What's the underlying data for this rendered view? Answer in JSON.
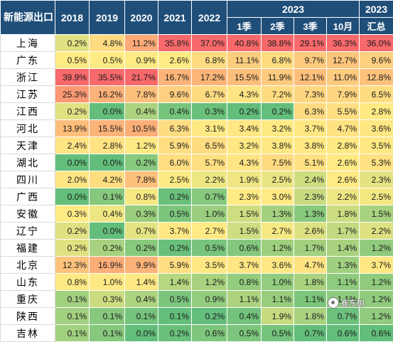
{
  "chart_data": {
    "type": "table",
    "corner_label": "新能源出口",
    "header_top": [
      "2018",
      "2019",
      "2020",
      "2021",
      "2022",
      "2023",
      "2023"
    ],
    "header_sub": [
      "1季",
      "2季",
      "3季",
      "10月",
      "汇总"
    ],
    "columns": [
      "2018",
      "2019",
      "2020",
      "2021",
      "2022",
      "2023 1季",
      "2023 2季",
      "2023 3季",
      "2023 10月",
      "2023 汇总"
    ],
    "rows": [
      {
        "name": "上海",
        "values": [
          "0.2%",
          "4.8%",
          "11.2%",
          "35.8%",
          "37.0%",
          "40.8%",
          "38.8%",
          "29.1%",
          "36.3%",
          "36.0%"
        ]
      },
      {
        "name": "广东",
        "values": [
          "0.5%",
          "0.5%",
          "0.9%",
          "2.6%",
          "6.8%",
          "11.1%",
          "6.8%",
          "9.7%",
          "12.7%",
          "9.6%"
        ]
      },
      {
        "name": "浙江",
        "values": [
          "39.9%",
          "35.5%",
          "21.7%",
          "16.7%",
          "17.2%",
          "15.5%",
          "11.9%",
          "12.1%",
          "11.0%",
          "12.8%"
        ]
      },
      {
        "name": "江苏",
        "values": [
          "25.3%",
          "16.2%",
          "7.8%",
          "9.6%",
          "6.7%",
          "4.3%",
          "7.2%",
          "7.3%",
          "7.9%",
          "6.5%"
        ]
      },
      {
        "name": "江西",
        "values": [
          "0.2%",
          "0.0%",
          "0.4%",
          "0.4%",
          "0.3%",
          "0.2%",
          "0.2%",
          "6.3%",
          "5.5%",
          "2.8%"
        ]
      },
      {
        "name": "河北",
        "values": [
          "13.9%",
          "15.5%",
          "10.5%",
          "6.3%",
          "3.1%",
          "3.4%",
          "3.2%",
          "3.7%",
          "4.7%",
          "3.6%"
        ]
      },
      {
        "name": "天津",
        "values": [
          "2.4%",
          "2.8%",
          "1.2%",
          "5.9%",
          "6.5%",
          "3.2%",
          "3.8%",
          "3.8%",
          "2.8%",
          "3.5%"
        ]
      },
      {
        "name": "湖北",
        "values": [
          "0.0%",
          "0.0%",
          "0.2%",
          "6.0%",
          "5.7%",
          "4.3%",
          "7.5%",
          "5.1%",
          "2.6%",
          "5.3%"
        ]
      },
      {
        "name": "四川",
        "values": [
          "2.0%",
          "4.2%",
          "7.8%",
          "2.5%",
          "2.2%",
          "1.9%",
          "2.5%",
          "2.4%",
          "2.6%",
          "2.3%"
        ]
      },
      {
        "name": "广西",
        "values": [
          "0.0%",
          "0.1%",
          "0.8%",
          "0.2%",
          "0.7%",
          "2.3%",
          "3.0%",
          "2.3%",
          "2.2%",
          "2.5%"
        ]
      },
      {
        "name": "安徽",
        "values": [
          "0.3%",
          "0.4%",
          "0.3%",
          "0.5%",
          "1.0%",
          "1.5%",
          "1.3%",
          "1.3%",
          "1.8%",
          "1.5%"
        ]
      },
      {
        "name": "辽宁",
        "values": [
          "0.2%",
          "0.0%",
          "0.7%",
          "3.7%",
          "2.7%",
          "1.5%",
          "2.7%",
          "2.6%",
          "1.7%",
          "2.2%"
        ]
      },
      {
        "name": "福建",
        "values": [
          "0.2%",
          "0.2%",
          "0.2%",
          "0.2%",
          "0.5%",
          "0.6%",
          "1.2%",
          "1.7%",
          "1.4%",
          "1.2%"
        ]
      },
      {
        "name": "北京",
        "values": [
          "12.3%",
          "16.9%",
          "9.9%",
          "5.9%",
          "3.5%",
          "3.7%",
          "3.6%",
          "4.7%",
          "1.3%",
          "3.7%"
        ]
      },
      {
        "name": "山东",
        "values": [
          "0.8%",
          "1.0%",
          "1.4%",
          "1.4%",
          "1.2%",
          "0.8%",
          "1.0%",
          "1.8%",
          "1.1%",
          "1.2%"
        ]
      },
      {
        "name": "重庆",
        "values": [
          "0.1%",
          "0.3%",
          "0.4%",
          "0.5%",
          "0.9%",
          "1.1%",
          "1.1%",
          "1.1%",
          "1.1%",
          "1.2%"
        ]
      },
      {
        "name": "陕西",
        "values": [
          "0.1%",
          "0.1%",
          "0.1%",
          "0.1%",
          "0.2%",
          "0.4%",
          "1.9%",
          "1.8%",
          "0.7%",
          "1.2%"
        ]
      },
      {
        "name": "吉林",
        "values": [
          "0.1%",
          "0.1%",
          "0.0%",
          "0.2%",
          "0.6%",
          "0.5%",
          "0.5%",
          "0.7%",
          "0.6%",
          "0.6%"
        ]
      }
    ],
    "color_scale": {
      "low": "#63be7b",
      "mid": "#ffeb84",
      "high": "#f8696b"
    }
  },
  "watermark": "崔东树"
}
